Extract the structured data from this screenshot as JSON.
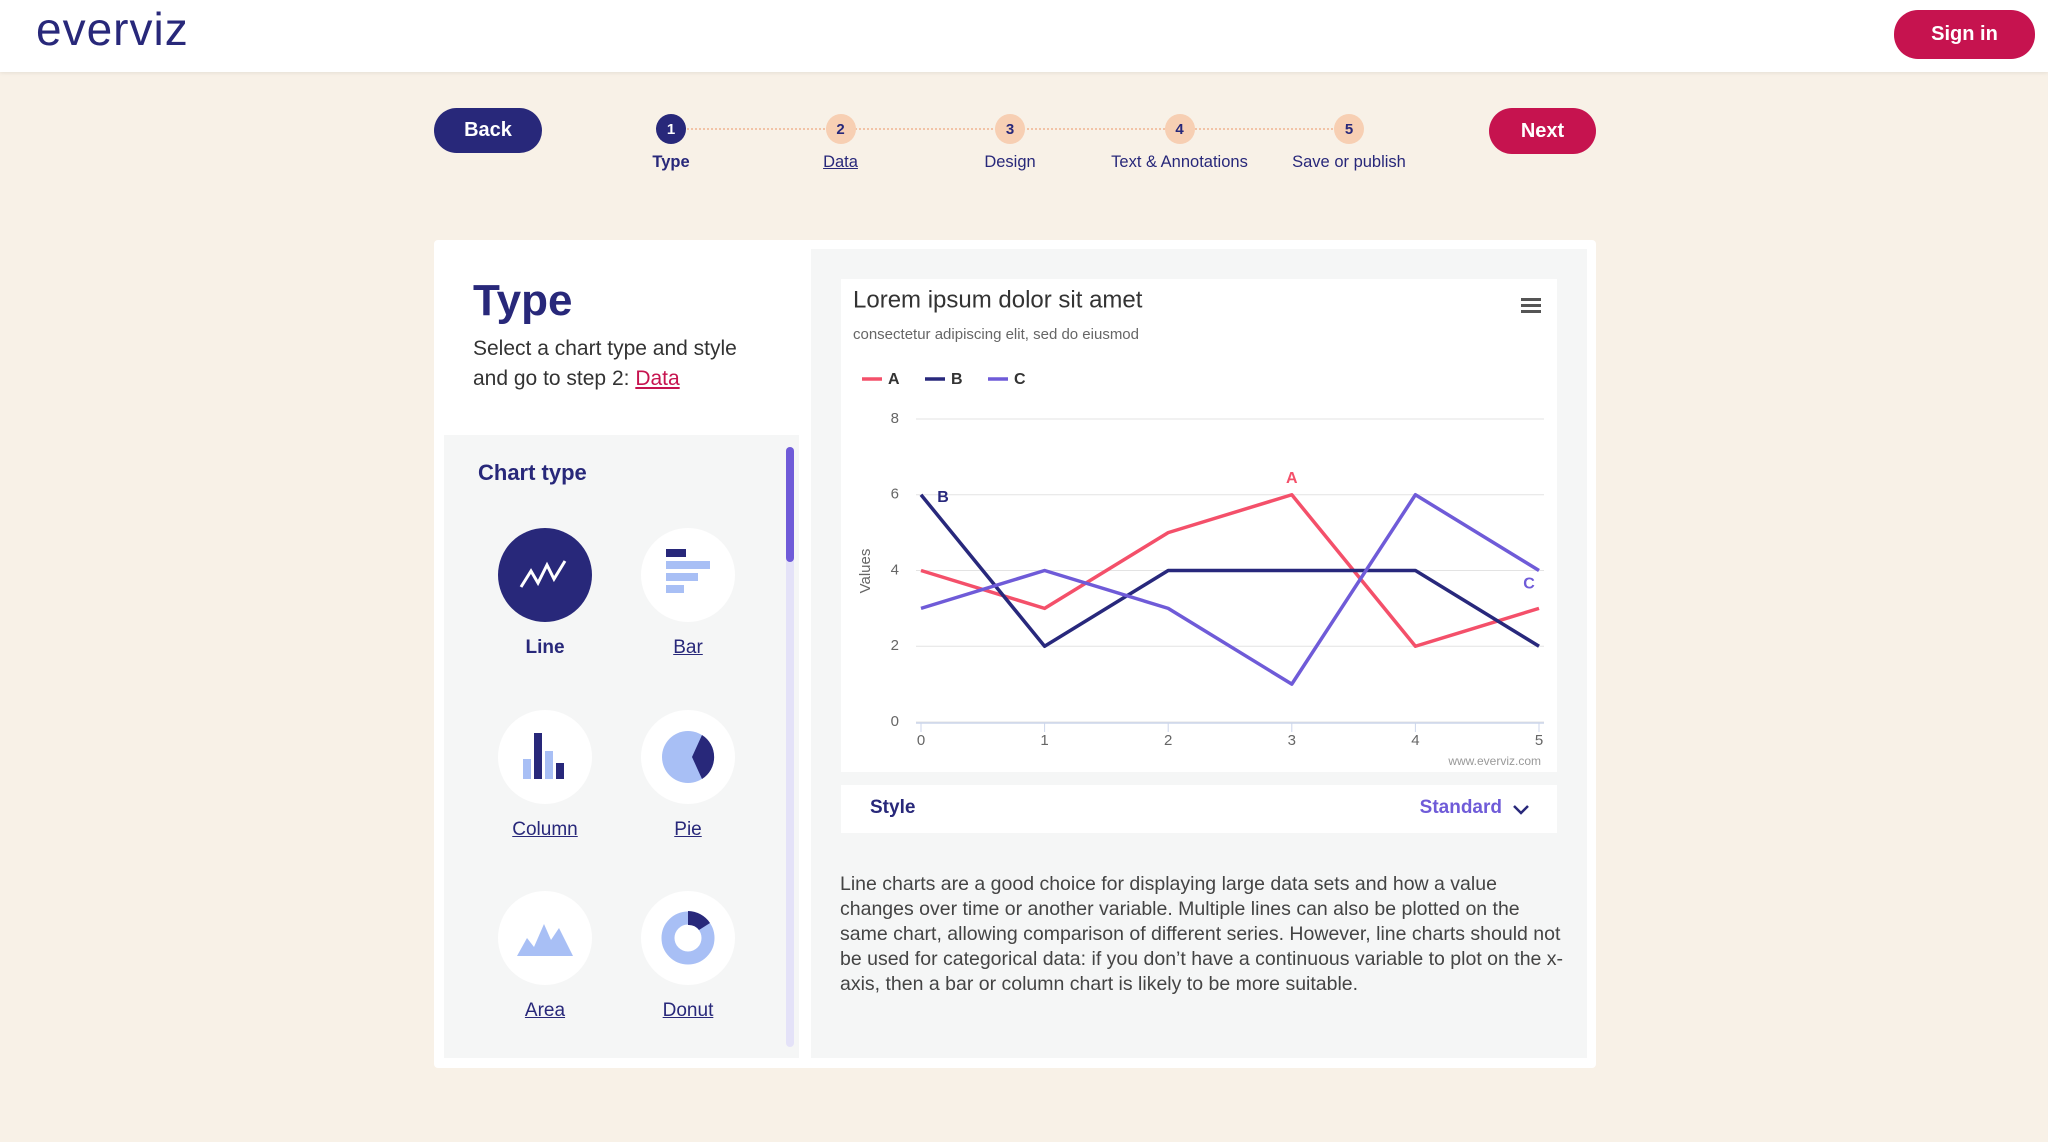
{
  "header": {
    "logo": "everviz",
    "sign_in": "Sign in"
  },
  "nav": {
    "back": "Back",
    "next": "Next",
    "steps": [
      {
        "number": 1,
        "label": "Type"
      },
      {
        "number": 2,
        "label": "Data"
      },
      {
        "number": 3,
        "label": "Design"
      },
      {
        "number": 4,
        "label": "Text & Annotations"
      },
      {
        "number": 5,
        "label": "Save or publish"
      }
    ]
  },
  "type_panel": {
    "title": "Type",
    "description": "Select a chart type and style and go to step 2:",
    "link": "Data",
    "chart_type_heading": "Chart type",
    "chart_types": [
      "Line",
      "Bar",
      "Column",
      "Pie",
      "Area",
      "Donut"
    ]
  },
  "style": {
    "label": "Style",
    "value": "Standard"
  },
  "description": "Line charts are a good choice for displaying large data sets and how a value changes over time or another variable. Multiple lines can also be plotted on the same chart, allowing comparison of different series. However, line charts should not be used for categorical data: if you don’t have a continuous variable to plot on the x-axis, then a bar or column chart is likely to be more suitable.",
  "chart_data": {
    "type": "line",
    "title": "Lorem ipsum dolor sit amet",
    "subtitle": "consectetur adipiscing elit, sed do eiusmod",
    "y_axis_label": "Values",
    "credits": "www.everviz.com",
    "x": [
      0,
      1,
      2,
      3,
      4,
      5
    ],
    "xlim": [
      0,
      5
    ],
    "xticks": [
      0,
      1,
      2,
      3,
      4,
      5
    ],
    "ylim": [
      0,
      8
    ],
    "yticks": [
      0,
      2,
      4,
      6,
      8
    ],
    "grid": true,
    "series": [
      {
        "name": "A",
        "color": "#f4506a",
        "values": [
          4,
          3,
          5,
          6,
          2,
          3
        ]
      },
      {
        "name": "B",
        "color": "#28287c",
        "values": [
          6,
          2,
          4,
          4,
          4,
          2
        ]
      },
      {
        "name": "C",
        "color": "#6f5bd8",
        "values": [
          3,
          4,
          3,
          1,
          6,
          4
        ]
      }
    ]
  }
}
